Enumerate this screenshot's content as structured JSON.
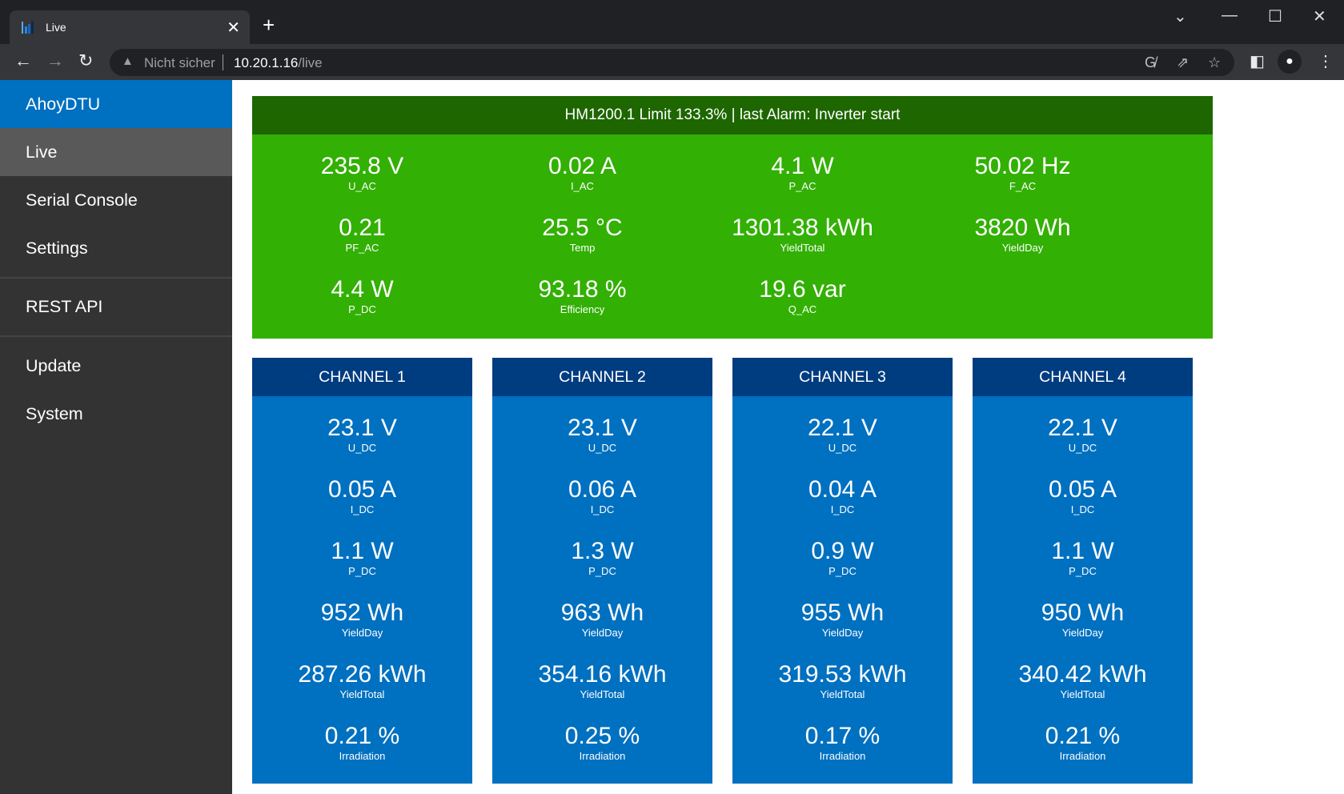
{
  "browser": {
    "tab_title": "Live",
    "new_tab": "+",
    "security_label": "Nicht sicher",
    "url_host": "10.20.1.16",
    "url_path": "/live",
    "icons": [
      "back-icon",
      "forward-icon",
      "reload-icon",
      "translate-icon",
      "share-icon",
      "bookmark-star-icon",
      "side-panel-icon",
      "profile-icon",
      "menu-icon"
    ]
  },
  "sidebar": {
    "brand": "AhoyDTU",
    "items": [
      {
        "label": "Live",
        "active": true
      },
      {
        "label": "Serial Console"
      },
      {
        "label": "Settings"
      },
      {
        "label": "REST API"
      },
      {
        "label": "Update"
      },
      {
        "label": "System"
      }
    ]
  },
  "inverter": {
    "header": "HM1200.1 Limit 133.3% | last Alarm: Inverter start",
    "color_header": "#1d6600",
    "color_body": "#32b004",
    "values": [
      {
        "value": "235.8 V",
        "label": "U_AC"
      },
      {
        "value": "0.02 A",
        "label": "I_AC"
      },
      {
        "value": "4.1 W",
        "label": "P_AC"
      },
      {
        "value": "50.02 Hz",
        "label": "F_AC"
      },
      {
        "value": "0.21",
        "label": "PF_AC"
      },
      {
        "value": "25.5 °C",
        "label": "Temp"
      },
      {
        "value": "1301.38 kWh",
        "label": "YieldTotal"
      },
      {
        "value": "3820 Wh",
        "label": "YieldDay"
      },
      {
        "value": "4.4 W",
        "label": "P_DC"
      },
      {
        "value": "93.18 %",
        "label": "Efficiency"
      },
      {
        "value": "19.6 var",
        "label": "Q_AC"
      }
    ]
  },
  "channels": [
    {
      "title": "CHANNEL 1",
      "values": [
        {
          "value": "23.1 V",
          "label": "U_DC"
        },
        {
          "value": "0.05 A",
          "label": "I_DC"
        },
        {
          "value": "1.1 W",
          "label": "P_DC"
        },
        {
          "value": "952 Wh",
          "label": "YieldDay"
        },
        {
          "value": "287.26 kWh",
          "label": "YieldTotal"
        },
        {
          "value": "0.21 %",
          "label": "Irradiation"
        }
      ]
    },
    {
      "title": "CHANNEL 2",
      "values": [
        {
          "value": "23.1 V",
          "label": "U_DC"
        },
        {
          "value": "0.06 A",
          "label": "I_DC"
        },
        {
          "value": "1.3 W",
          "label": "P_DC"
        },
        {
          "value": "963 Wh",
          "label": "YieldDay"
        },
        {
          "value": "354.16 kWh",
          "label": "YieldTotal"
        },
        {
          "value": "0.25 %",
          "label": "Irradiation"
        }
      ]
    },
    {
      "title": "CHANNEL 3",
      "values": [
        {
          "value": "22.1 V",
          "label": "U_DC"
        },
        {
          "value": "0.04 A",
          "label": "I_DC"
        },
        {
          "value": "0.9 W",
          "label": "P_DC"
        },
        {
          "value": "955 Wh",
          "label": "YieldDay"
        },
        {
          "value": "319.53 kWh",
          "label": "YieldTotal"
        },
        {
          "value": "0.17 %",
          "label": "Irradiation"
        }
      ]
    },
    {
      "title": "CHANNEL 4",
      "values": [
        {
          "value": "22.1 V",
          "label": "U_DC"
        },
        {
          "value": "0.05 A",
          "label": "I_DC"
        },
        {
          "value": "1.1 W",
          "label": "P_DC"
        },
        {
          "value": "950 Wh",
          "label": "YieldDay"
        },
        {
          "value": "340.42 kWh",
          "label": "YieldTotal"
        },
        {
          "value": "0.21 %",
          "label": "Irradiation"
        }
      ]
    }
  ],
  "colors": {
    "channel_header": "#003c80",
    "channel_body": "#0070c0",
    "sidebar_brand": "#0070c0",
    "sidebar_bg": "#333333",
    "sidebar_active": "#595959"
  }
}
